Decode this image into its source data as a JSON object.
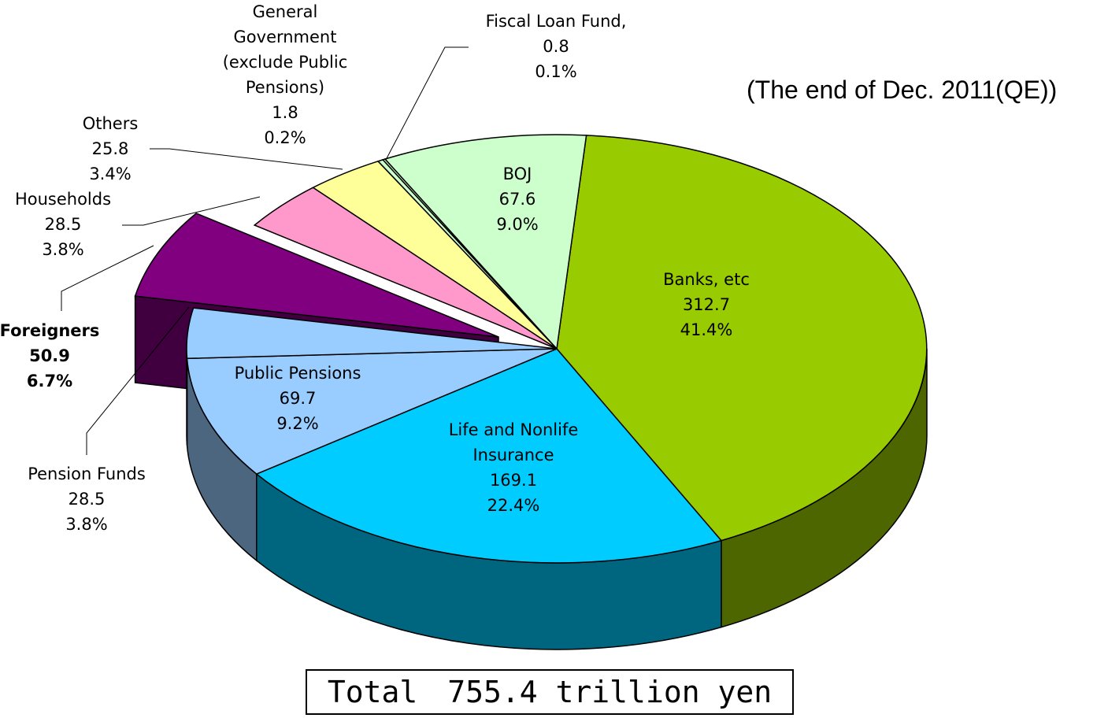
{
  "chart_data": {
    "type": "pie",
    "title": "(The end of Dec. 2011(QE))",
    "total_label": "Total　755.4 trillion yen",
    "categories": [
      "Banks, etc",
      "Life and Nonlife Insurance",
      "Public Pensions",
      "Pension Funds",
      "Foreigners",
      "Households",
      "Others",
      "General Government (exclude Public Pensions)",
      "Fiscal Loan Fund,",
      "BOJ"
    ],
    "values": [
      312.7,
      169.1,
      69.7,
      28.5,
      50.9,
      28.5,
      25.8,
      1.8,
      0.8,
      67.6
    ],
    "percents": [
      41.4,
      22.4,
      9.2,
      3.8,
      6.7,
      3.8,
      3.4,
      0.2,
      0.1,
      9.0
    ],
    "percent_labels": [
      "41.4%",
      "22.4%",
      "9.2%",
      "3.8%",
      "6.7%",
      "3.8%",
      "3.4%",
      "0.2%",
      "0.1%",
      "9.0%"
    ],
    "colors": [
      "#99cc00",
      "#00ccff",
      "#99ccff",
      "#99ccff",
      "#800080",
      "#ff99cc",
      "#ffff99",
      "#ccffcc",
      "#ccffcc",
      "#ccffcc"
    ],
    "edge_colors": [
      "#4d6600",
      "#006680",
      "#4d6680",
      "#4d6680",
      "#400040",
      "#804d66",
      "#80804d",
      "#668066",
      "#668066",
      "#668066"
    ],
    "exploded": [
      4
    ],
    "highlighted": [
      4
    ]
  }
}
